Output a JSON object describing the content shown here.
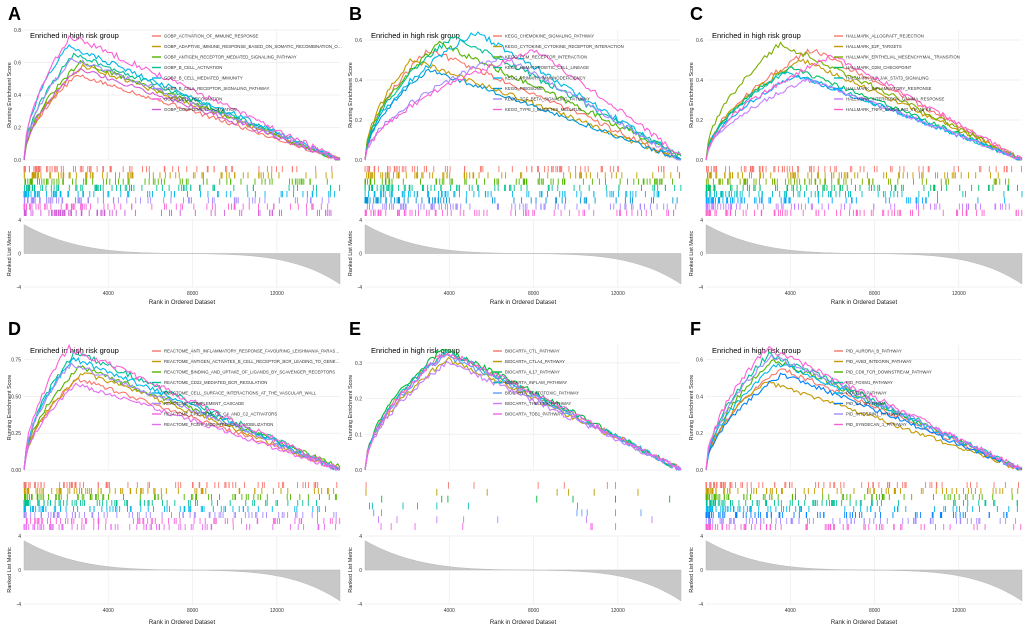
{
  "panel_letters": [
    "A",
    "B",
    "C",
    "D",
    "E",
    "F"
  ],
  "chart_data": [
    {
      "type": "line",
      "panel": "A",
      "title": "Enriched in high risk group",
      "ylabel": "Running Enrichment Score",
      "xlabel": "Rank in Ordered Dataset",
      "metric_label": "Ranked List Metric",
      "ylim": [
        0,
        0.8
      ],
      "yticks": [
        "0.0",
        "0.2",
        "0.4",
        "0.6",
        "0.8"
      ],
      "xlim": [
        0,
        15000
      ],
      "xticks": [
        4000,
        8000,
        12000
      ],
      "metric_ylim": [
        -4,
        4
      ],
      "metric_yticks": [
        -4,
        0,
        4
      ],
      "series": [
        {
          "name": "GOBP_ACTIVATION_OF_IMMUNE_RESPONSE",
          "color": "#f8766d",
          "peak_x": 2500,
          "peak": 0.52,
          "end": 0.0
        },
        {
          "name": "GOBP_ADAPTIVE_IMMUNE_RESPONSE_BASED_ON_SOMATIC_RECOMBINATION_OF_IMMUNE_RECEPTORS_BUILT_FROM_IMMUNOGLOBULIN_SUPERFAMILY_DOMAINS",
          "color": "#c49a00",
          "peak_x": 2800,
          "peak": 0.58,
          "end": 0.0
        },
        {
          "name": "GOBP_ANTIGEN_RECEPTOR_MEDIATED_SIGNALING_PATHWAY",
          "color": "#53b400",
          "peak_x": 2700,
          "peak": 0.6,
          "end": 0.0
        },
        {
          "name": "GOBP_B_CELL_ACTIVATION",
          "color": "#00c094",
          "peak_x": 2400,
          "peak": 0.65,
          "end": 0.0
        },
        {
          "name": "GOBP_B_CELL_MEDIATED_IMMUNITY",
          "color": "#00b6eb",
          "peak_x": 2000,
          "peak": 0.7,
          "end": 0.0
        },
        {
          "name": "GOBP_B_CELL_RECEPTOR_SIGNALING_PATHWAY",
          "color": "#a58aff",
          "peak_x": 2300,
          "peak": 0.62,
          "end": 0.0
        },
        {
          "name": "GOBP_CELL_RECOGNITION",
          "color": "#fb61d7",
          "peak_x": 2200,
          "peak": 0.76,
          "end": 0.0
        },
        {
          "name": "GOBP_COMPLEMENT_ACTIVATION",
          "color": "#d05dd8",
          "peak_x": 2600,
          "peak": 0.56,
          "end": 0.0
        }
      ]
    },
    {
      "type": "line",
      "panel": "B",
      "title": "Enriched in high risk group",
      "ylabel": "Running Enrichment Score",
      "xlabel": "Rank in Ordered Dataset",
      "metric_label": "Ranked List Metric",
      "ylim": [
        0,
        0.65
      ],
      "yticks": [
        "0.0",
        "0.2",
        "0.4",
        "0.6"
      ],
      "xlim": [
        0,
        15000
      ],
      "xticks": [
        4000,
        8000,
        12000
      ],
      "metric_ylim": [
        -4,
        4
      ],
      "metric_yticks": [
        -4,
        0,
        4
      ],
      "series": [
        {
          "name": "KEGG_CHEMOKINE_SIGNALING_PATHWAY",
          "color": "#f8766d",
          "peak_x": 3000,
          "peak": 0.55,
          "end": 0.0
        },
        {
          "name": "KEGG_CYTOKINE_CYTOKINE_RECEPTOR_INTERACTION",
          "color": "#c49a00",
          "peak_x": 2200,
          "peak": 0.5,
          "end": 0.0
        },
        {
          "name": "KEGG_ECM_RECEPTOR_INTERACTION",
          "color": "#53b400",
          "peak_x": 3500,
          "peak": 0.58,
          "end": 0.02
        },
        {
          "name": "KEGG_HEMATOPOIETIC_CELL_LINEAGE",
          "color": "#00c094",
          "peak_x": 4200,
          "peak": 0.62,
          "end": 0.02
        },
        {
          "name": "KEGG_PRIMARY_IMMUNODEFICIENCY",
          "color": "#00b6eb",
          "peak_x": 5200,
          "peak": 0.64,
          "end": 0.0
        },
        {
          "name": "KEGG_RIBOSOME",
          "color": "#0096d6",
          "peak_x": 3000,
          "peak": 0.45,
          "end": 0.0
        },
        {
          "name": "KEGG_TGF_BETA_SIGNALING_PATHWAY",
          "color": "#a58aff",
          "peak_x": 6500,
          "peak": 0.52,
          "end": 0.0
        },
        {
          "name": "KEGG_TYPE_I_DIABETES_MELLITUS",
          "color": "#fb61d7",
          "peak_x": 8000,
          "peak": 0.55,
          "end": 0.02
        }
      ]
    },
    {
      "type": "line",
      "panel": "C",
      "title": "Enriched in high risk group",
      "ylabel": "Running Enrichment Score",
      "xlabel": "Rank in Ordered Dataset",
      "metric_label": "Ranked List Metric",
      "ylim": [
        0,
        0.65
      ],
      "yticks": [
        "0.0",
        "0.2",
        "0.4",
        "0.6"
      ],
      "xlim": [
        0,
        15000
      ],
      "xticks": [
        4000,
        8000,
        12000
      ],
      "metric_ylim": [
        -4,
        4
      ],
      "metric_yticks": [
        -4,
        0,
        4
      ],
      "series": [
        {
          "name": "HALLMARK_ALLOGRAFT_REJECTION",
          "color": "#f8766d",
          "peak_x": 5000,
          "peak": 0.55,
          "end": 0.0
        },
        {
          "name": "HALLMARK_E2F_TARGETS",
          "color": "#c49a00",
          "peak_x": 4500,
          "peak": 0.5,
          "end": 0.0
        },
        {
          "name": "HALLMARK_EPITHELIAL_MESENCHYMAL_TRANSITION",
          "color": "#7cae00",
          "peak_x": 3500,
          "peak": 0.58,
          "end": 0.0
        },
        {
          "name": "HALLMARK_G2M_CHECKPOINT",
          "color": "#00be67",
          "peak_x": 4000,
          "peak": 0.46,
          "end": 0.0
        },
        {
          "name": "HALLMARK_IL6_JAK_STAT3_SIGNALING",
          "color": "#00bfc4",
          "peak_x": 3800,
          "peak": 0.44,
          "end": 0.0
        },
        {
          "name": "HALLMARK_INFLAMMATORY_RESPONSE",
          "color": "#00a9ff",
          "peak_x": 4200,
          "peak": 0.42,
          "end": 0.0
        },
        {
          "name": "HALLMARK_INTERFERON_GAMMA_RESPONSE",
          "color": "#c77cff",
          "peak_x": 4800,
          "peak": 0.4,
          "end": 0.0
        },
        {
          "name": "HALLMARK_TNFA_SIGNALING_VIA_NFKB",
          "color": "#ff61cc",
          "peak_x": 6000,
          "peak": 0.52,
          "end": 0.0
        }
      ]
    },
    {
      "type": "line",
      "panel": "D",
      "title": "Enriched in high risk group",
      "ylabel": "Running Enrichment Score",
      "xlabel": "Rank in Ordered Dataset",
      "metric_label": "Ranked List Metric",
      "ylim": [
        0,
        0.85
      ],
      "yticks": [
        "0.00",
        "0.25",
        "0.50",
        "0.75"
      ],
      "xlim": [
        0,
        15000
      ],
      "xticks": [
        4000,
        8000,
        12000
      ],
      "metric_ylim": [
        -4,
        4
      ],
      "metric_yticks": [
        -4,
        0,
        4
      ],
      "series": [
        {
          "name": "REACTOME_ANTI_INFLAMMATORY_RESPONSE_FAVOURING_LEISHMANIA_PARASITE_INFECTION",
          "color": "#f8766d",
          "peak_x": 2500,
          "peak": 0.62,
          "end": 0.0
        },
        {
          "name": "REACTOME_ANTIGEN_ACTIVATES_B_CELL_RECEPTOR_BCR_LEADING_TO_GENERATION_OF_SECOND_MESSENGERS",
          "color": "#c49a00",
          "peak_x": 2800,
          "peak": 0.66,
          "end": 0.0
        },
        {
          "name": "REACTOME_BINDING_AND_UPTAKE_OF_LIGANDS_BY_SCAVENGER_RECEPTORS",
          "color": "#53b400",
          "peak_x": 2600,
          "peak": 0.7,
          "end": 0.02
        },
        {
          "name": "REACTOME_CD22_MEDIATED_BCR_REGULATION",
          "color": "#00c094",
          "peak_x": 2400,
          "peak": 0.8,
          "end": 0.0
        },
        {
          "name": "REACTOME_CELL_SURFACE_INTERACTIONS_AT_THE_VASCULAR_WALL",
          "color": "#00b6eb",
          "peak_x": 2300,
          "peak": 0.76,
          "end": 0.0
        },
        {
          "name": "REACTOME_COMPLEMENT_CASCADE",
          "color": "#a58aff",
          "peak_x": 2200,
          "peak": 0.72,
          "end": 0.0
        },
        {
          "name": "REACTOME_CREATION_OF_C4_AND_C2_ACTIVATORS",
          "color": "#fb61d7",
          "peak_x": 2100,
          "peak": 0.83,
          "end": 0.0
        },
        {
          "name": "REACTOME_FCERI_MEDIATED_CA_2_MOBILIZATION",
          "color": "#e76bf3",
          "peak_x": 2500,
          "peak": 0.58,
          "end": 0.0
        }
      ]
    },
    {
      "type": "line",
      "panel": "E",
      "title": "Enriched in high risk group",
      "ylabel": "Running Enrichment Score",
      "xlabel": "Rank in Ordered Dataset",
      "metric_label": "Ranked List Metric",
      "ylim": [
        0,
        0.35
      ],
      "yticks": [
        "0.0",
        "0.1",
        "0.2",
        "0.3"
      ],
      "xlim": [
        0,
        15000
      ],
      "xticks": [
        4000,
        8000,
        12000
      ],
      "metric_ylim": [
        -4,
        4
      ],
      "metric_yticks": [
        -4,
        0,
        4
      ],
      "series": [
        {
          "name": "BIOCARTA_CTL_PATHWAY",
          "color": "#f8766d",
          "peak_x": 3800,
          "peak": 0.33,
          "end": 0.0
        },
        {
          "name": "BIOCARTA_CTLA4_PATHWAY",
          "color": "#b79f00",
          "peak_x": 3900,
          "peak": 0.31,
          "end": 0.0
        },
        {
          "name": "BIOCARTA_IL17_PATHWAY",
          "color": "#00ba38",
          "peak_x": 3700,
          "peak": 0.34,
          "end": 0.0
        },
        {
          "name": "BIOCARTA_INFLAM_PATHWAY",
          "color": "#00bfc4",
          "peak_x": 3800,
          "peak": 0.33,
          "end": 0.0
        },
        {
          "name": "BIOCARTA_TCYTOTOXIC_PATHWAY",
          "color": "#619cff",
          "peak_x": 3750,
          "peak": 0.32,
          "end": 0.0
        },
        {
          "name": "BIOCARTA_THELPER_PATHWAY",
          "color": "#c77cff",
          "peak_x": 3900,
          "peak": 0.3,
          "end": 0.0
        },
        {
          "name": "BIOCARTA_TOB1_PATHWAY",
          "color": "#f564e3",
          "peak_x": 3850,
          "peak": 0.33,
          "end": 0.0
        }
      ]
    },
    {
      "type": "line",
      "panel": "F",
      "title": "Enriched in high risk group",
      "ylabel": "Running Enrichment Score",
      "xlabel": "Rank in Ordered Dataset",
      "metric_label": "Ranked List Metric",
      "ylim": [
        0,
        0.68
      ],
      "yticks": [
        "0.0",
        "0.2",
        "0.4",
        "0.6"
      ],
      "xlim": [
        0,
        15000
      ],
      "xticks": [
        4000,
        8000,
        12000
      ],
      "metric_ylim": [
        -4,
        4
      ],
      "metric_yticks": [
        -4,
        0,
        4
      ],
      "series": [
        {
          "name": "PID_AURORA_B_PATHWAY",
          "color": "#f8766d",
          "peak_x": 3500,
          "peak": 0.55,
          "end": 0.0
        },
        {
          "name": "PID_AVB3_INTEGRIN_PATHWAY",
          "color": "#c49a00",
          "peak_x": 2800,
          "peak": 0.48,
          "end": 0.0
        },
        {
          "name": "PID_CD8_TCR_DOWNSTREAM_PATHWAY",
          "color": "#53b400",
          "peak_x": 3200,
          "peak": 0.6,
          "end": 0.0
        },
        {
          "name": "PID_FOXM1_PATHWAY",
          "color": "#00c094",
          "peak_x": 3000,
          "peak": 0.63,
          "end": 0.0
        },
        {
          "name": "PID_FRA_PATHWAY",
          "color": "#00b6eb",
          "peak_x": 3400,
          "peak": 0.58,
          "end": 0.0
        },
        {
          "name": "PID_IL4_2PATHWAY",
          "color": "#0080ff",
          "peak_x": 3600,
          "peak": 0.52,
          "end": 0.0
        },
        {
          "name": "PID_INTEGRIN1_PATHWAY",
          "color": "#a58aff",
          "peak_x": 3100,
          "peak": 0.62,
          "end": 0.0
        },
        {
          "name": "PID_SYNDECAN_1_PATHWAY",
          "color": "#fb61d7",
          "peak_x": 2900,
          "peak": 0.66,
          "end": 0.0
        }
      ]
    }
  ]
}
